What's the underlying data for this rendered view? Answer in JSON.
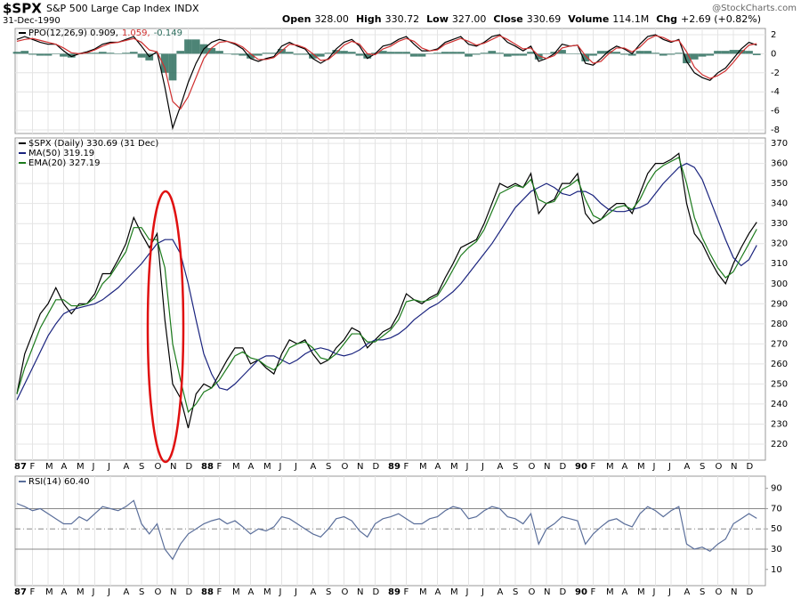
{
  "header": {
    "symbol": "$SPX",
    "name": "S&P 500 Large Cap Index",
    "exchange": "INDX",
    "date": "31-Dec-1990",
    "watermark": "@StockCharts.com",
    "quote": [
      {
        "label": "Open",
        "value": "328.00"
      },
      {
        "label": "High",
        "value": "330.72"
      },
      {
        "label": "Low",
        "value": "327.00"
      },
      {
        "label": "Close",
        "value": "330.69"
      },
      {
        "label": "Volume",
        "value": "114.1M"
      },
      {
        "label": "Chg",
        "value": "+2.69 (+0.82%)"
      }
    ]
  },
  "chart_data": [
    {
      "type": "line",
      "ylim": [
        -8.37,
        2.65
      ],
      "yticks": [
        2,
        0,
        -2,
        -4,
        -6,
        -8
      ],
      "grid": true,
      "series": [
        {
          "name": "PPO(12,26,9) 0.909,",
          "color": "#000000",
          "values": [
            1.5,
            1.8,
            1.5,
            1.2,
            1.0,
            1.0,
            0.3,
            -0.3,
            0,
            0.2,
            0.5,
            1.0,
            1.2,
            1.2,
            1.5,
            1.8,
            0.8,
            -0.3,
            0.2,
            -3.5,
            -7.8,
            -5.5,
            -3,
            -1,
            0.5,
            1.2,
            1.5,
            1.3,
            1.0,
            0.5,
            -0.5,
            -0.8,
            -0.5,
            -0.3,
            0.8,
            1.2,
            0.8,
            0.5,
            -0.5,
            -1,
            -0.5,
            0.5,
            1.2,
            1.5,
            0.8,
            -0.5,
            0,
            0.8,
            1.0,
            1.5,
            1.8,
            1.0,
            0.3,
            0.3,
            0.5,
            1.2,
            1.5,
            1.8,
            1.0,
            0.8,
            1.2,
            1.8,
            2.0,
            1.2,
            0.8,
            0.3,
            0.8,
            -0.8,
            -0.5,
            0,
            1.0,
            0.8,
            0.9,
            -1.0,
            -1.2,
            -0.5,
            0.3,
            0.8,
            0.5,
            0,
            1.0,
            1.8,
            2.0,
            1.5,
            1.2,
            1.5,
            -0.8,
            -2.0,
            -2.5,
            -2.8,
            -2.0,
            -1.5,
            -0.5,
            0.5,
            1.2,
            0.909
          ]
        },
        {
          "name": "1.059,",
          "color": "#d03030",
          "values": [
            1.3,
            1.5,
            1.6,
            1.4,
            1.2,
            1.0,
            0.6,
            0.1,
            0,
            0.1,
            0.4,
            0.8,
            1.1,
            1.2,
            1.4,
            1.6,
            1.2,
            0.4,
            0.2,
            -1.5,
            -5,
            -5.8,
            -4.5,
            -2.5,
            -0.5,
            0.6,
            1.2,
            1.3,
            1.1,
            0.7,
            0,
            -0.6,
            -0.6,
            -0.4,
            0.3,
            1.0,
            0.9,
            0.6,
            0,
            -0.7,
            -0.6,
            0.1,
            0.9,
            1.3,
            1.0,
            0,
            -0.1,
            0.5,
            0.8,
            1.3,
            1.6,
            1.3,
            0.6,
            0.3,
            0.4,
            1.0,
            1.3,
            1.6,
            1.3,
            0.9,
            1.1,
            1.5,
            1.9,
            1.5,
            1.0,
            0.5,
            0.6,
            -0.2,
            -0.5,
            -0.2,
            0.6,
            0.8,
            0.9,
            -0.2,
            -1.0,
            -0.8,
            0,
            0.6,
            0.6,
            0.2,
            0.7,
            1.5,
            1.9,
            1.7,
            1.3,
            1.4,
            0.2,
            -1.4,
            -2.2,
            -2.6,
            -2.3,
            -1.8,
            -0.9,
            0.1,
            0.9,
            1.059
          ]
        },
        {
          "name": "-0.149",
          "color": "#2e6e5e",
          "type": "bar",
          "values": [
            0.2,
            0.3,
            -0.1,
            -0.2,
            -0.2,
            0,
            -0.3,
            -0.4,
            0,
            0.1,
            0.1,
            0.2,
            0.1,
            0,
            0.1,
            0.2,
            -0.4,
            -0.7,
            0,
            -2,
            -2.8,
            0.3,
            1.5,
            1.5,
            1.0,
            0.6,
            0.3,
            0,
            -0.1,
            -0.2,
            -0.5,
            -0.2,
            0.1,
            0.1,
            0.5,
            0.2,
            -0.1,
            -0.1,
            -0.5,
            -0.3,
            0.1,
            0.4,
            0.3,
            0.2,
            -0.2,
            -0.5,
            0.1,
            0.3,
            0.2,
            0.2,
            0.2,
            -0.3,
            -0.3,
            0,
            0.1,
            0.2,
            0.2,
            0.2,
            -0.3,
            -0.1,
            0.1,
            0.3,
            0.1,
            -0.3,
            -0.2,
            -0.2,
            0.2,
            -0.6,
            0,
            0.2,
            0.4,
            0,
            0,
            -0.8,
            -0.2,
            0.3,
            0.3,
            0.2,
            -0.1,
            -0.2,
            0.3,
            0.3,
            0.1,
            -0.2,
            -0.1,
            0.1,
            -1.0,
            -0.6,
            -0.3,
            -0.2,
            0.3,
            0.3,
            0.4,
            0.4,
            0.3,
            -0.149
          ]
        }
      ]
    },
    {
      "type": "line",
      "ylim": [
        212,
        372.7
      ],
      "yticks": [
        220,
        230,
        240,
        250,
        260,
        270,
        280,
        290,
        300,
        310,
        320,
        330,
        340,
        350,
        360,
        370
      ],
      "grid": true,
      "categories": [
        "87",
        null,
        "F",
        null,
        "M",
        null,
        "A",
        null,
        "M",
        null,
        "J",
        null,
        "J",
        null,
        "A",
        null,
        "S",
        null,
        "O",
        null,
        "N",
        null,
        "D",
        null,
        "88",
        null,
        "F",
        null,
        "M",
        null,
        "A",
        null,
        "M",
        null,
        "J",
        null,
        "J",
        null,
        "A",
        null,
        "S",
        null,
        "O",
        null,
        "N",
        null,
        "D",
        null,
        "89",
        null,
        "F",
        null,
        "M",
        null,
        "A",
        null,
        "M",
        null,
        "J",
        null,
        "J",
        null,
        "A",
        null,
        "S",
        null,
        "O",
        null,
        "N",
        null,
        "D",
        null,
        "90",
        null,
        "F",
        null,
        "M",
        null,
        "A",
        null,
        "M",
        null,
        "J",
        null,
        "J",
        null,
        "A",
        null,
        "S",
        null,
        "O",
        null,
        "N",
        null,
        "D",
        null
      ],
      "series": [
        {
          "name": "$SPX (Daily) 330.69 (31 Dec)",
          "color": "#000000",
          "values": [
            245,
            265,
            275,
            285,
            290,
            298,
            290,
            285,
            290,
            290,
            295,
            305,
            305,
            312,
            320,
            333,
            325,
            318,
            325,
            282,
            250,
            243,
            228,
            245,
            250,
            248,
            255,
            262,
            268,
            268,
            260,
            262,
            258,
            255,
            265,
            272,
            270,
            272,
            265,
            260,
            262,
            268,
            272,
            278,
            276,
            268,
            272,
            276,
            278,
            285,
            295,
            292,
            290,
            293,
            295,
            303,
            310,
            318,
            320,
            322,
            330,
            340,
            350,
            348,
            350,
            348,
            355,
            335,
            340,
            342,
            350,
            350,
            355,
            335,
            330,
            332,
            337,
            340,
            340,
            335,
            345,
            355,
            360,
            360,
            362,
            365,
            340,
            325,
            320,
            312,
            305,
            300,
            310,
            318,
            325,
            330.69
          ]
        },
        {
          "name": "MA(50) 319.19",
          "color": "#1a237e",
          "values": [
            242,
            250,
            258,
            266,
            274,
            280,
            285,
            287,
            288,
            289,
            290,
            292,
            295,
            298,
            302,
            306,
            310,
            315,
            320,
            322,
            322,
            315,
            300,
            282,
            265,
            255,
            248,
            247,
            250,
            254,
            258,
            262,
            264,
            264,
            262,
            260,
            262,
            265,
            267,
            268,
            267,
            265,
            264,
            265,
            267,
            270,
            272,
            272,
            273,
            275,
            278,
            282,
            285,
            288,
            290,
            293,
            296,
            300,
            305,
            310,
            315,
            320,
            326,
            332,
            338,
            342,
            346,
            348,
            350,
            348,
            345,
            344,
            346,
            346,
            344,
            340,
            337,
            336,
            336,
            337,
            338,
            340,
            345,
            350,
            354,
            358,
            360,
            358,
            352,
            342,
            332,
            322,
            313,
            309,
            312,
            319.19
          ]
        },
        {
          "name": "EMA(20) 327.19",
          "color": "#1b7a1b",
          "values": [
            245,
            258,
            268,
            278,
            285,
            292,
            292,
            289,
            289,
            290,
            293,
            300,
            304,
            310,
            316,
            328,
            328,
            322,
            322,
            308,
            270,
            252,
            236,
            240,
            246,
            248,
            252,
            258,
            264,
            266,
            263,
            262,
            259,
            257,
            261,
            268,
            270,
            271,
            268,
            263,
            262,
            265,
            270,
            275,
            275,
            271,
            271,
            274,
            277,
            282,
            291,
            292,
            291,
            292,
            294,
            300,
            307,
            314,
            318,
            321,
            327,
            336,
            345,
            347,
            349,
            348,
            352,
            342,
            340,
            341,
            347,
            349,
            352,
            342,
            334,
            332,
            335,
            338,
            339,
            337,
            342,
            350,
            356,
            359,
            361,
            363,
            350,
            333,
            323,
            315,
            308,
            303,
            306,
            313,
            320,
            327.19
          ]
        }
      ]
    },
    {
      "type": "line",
      "ylim": [
        -6,
        102
      ],
      "yticks": [
        10,
        30,
        50,
        70,
        90
      ],
      "hlines": [
        70,
        50,
        30
      ],
      "hline_styles": [
        "solid",
        "dashed",
        "solid"
      ],
      "categories": [
        "87",
        null,
        "F",
        null,
        "M",
        null,
        "A",
        null,
        "M",
        null,
        "J",
        null,
        "J",
        null,
        "A",
        null,
        "S",
        null,
        "O",
        null,
        "N",
        null,
        "D",
        null,
        "88",
        null,
        "F",
        null,
        "M",
        null,
        "A",
        null,
        "M",
        null,
        "J",
        null,
        "J",
        null,
        "A",
        null,
        "S",
        null,
        "O",
        null,
        "N",
        null,
        "D",
        null,
        "89",
        null,
        "F",
        null,
        "M",
        null,
        "A",
        null,
        "M",
        null,
        "J",
        null,
        "J",
        null,
        "A",
        null,
        "S",
        null,
        "O",
        null,
        "N",
        null,
        "D",
        null,
        "90",
        null,
        "F",
        null,
        "M",
        null,
        "A",
        null,
        "M",
        null,
        "J",
        null,
        "J",
        null,
        "A",
        null,
        "S",
        null,
        "O",
        null,
        "N",
        null,
        "D",
        null
      ],
      "series": [
        {
          "name": "RSI(14) 60.40",
          "color": "#5a6e9a",
          "values": [
            75,
            72,
            68,
            70,
            65,
            60,
            55,
            55,
            62,
            58,
            65,
            72,
            70,
            68,
            72,
            78,
            55,
            45,
            55,
            30,
            20,
            35,
            45,
            50,
            55,
            58,
            60,
            55,
            58,
            52,
            45,
            50,
            48,
            52,
            62,
            60,
            55,
            50,
            45,
            42,
            50,
            60,
            62,
            58,
            48,
            42,
            55,
            60,
            62,
            65,
            60,
            55,
            55,
            60,
            62,
            68,
            72,
            70,
            60,
            62,
            68,
            72,
            70,
            62,
            60,
            55,
            65,
            35,
            50,
            55,
            62,
            60,
            58,
            35,
            45,
            52,
            58,
            60,
            55,
            52,
            65,
            72,
            68,
            62,
            68,
            72,
            35,
            30,
            32,
            28,
            35,
            40,
            55,
            60,
            65,
            60.4
          ]
        }
      ]
    }
  ]
}
